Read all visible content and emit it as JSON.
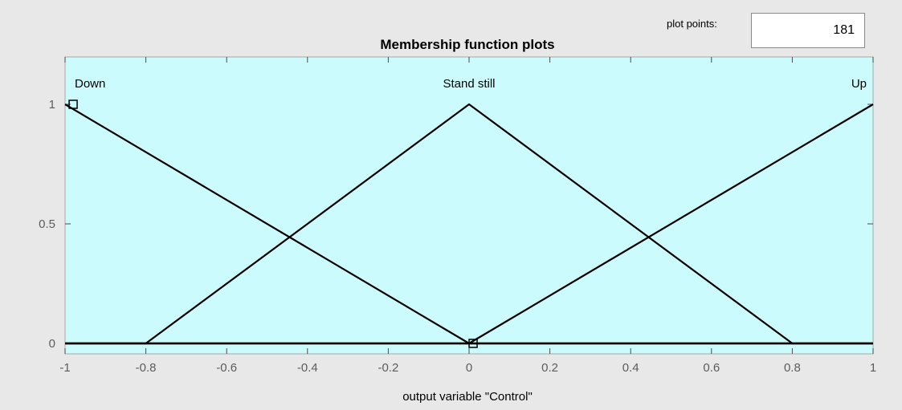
{
  "controls": {
    "plot_points_label": "plot points:",
    "plot_points_value": "181"
  },
  "colors": {
    "panel_background": "#e8e8e8",
    "plot_background": "#ccfbfd",
    "line_color": "#000000",
    "tick_label_color": "#5c5c5c"
  },
  "chart_data": {
    "type": "line",
    "title": "Membership function plots",
    "xlabel": "output variable \"Control\"",
    "ylabel": "",
    "xlim": [
      -1,
      1
    ],
    "ylim": [
      -0.05,
      1.2
    ],
    "x_ticks": [
      -1,
      -0.8,
      -0.6,
      -0.4,
      -0.2,
      0,
      0.2,
      0.4,
      0.6,
      0.8,
      1
    ],
    "x_tick_labels": [
      "-1",
      "-0.8",
      "-0.6",
      "-0.4",
      "-0.2",
      "0",
      "0.2",
      "0.4",
      "0.6",
      "0.8",
      "1"
    ],
    "y_ticks": [
      0,
      0.5,
      1
    ],
    "y_tick_labels": [
      "0",
      "0.5",
      "1"
    ],
    "grid": false,
    "series": [
      {
        "name": "Down",
        "x": [
          -1,
          0,
          1
        ],
        "y": [
          1,
          0,
          0
        ]
      },
      {
        "name": "Stand still",
        "x": [
          -1,
          -0.8,
          0,
          0.8,
          1
        ],
        "y": [
          0,
          0,
          1,
          0,
          0
        ]
      },
      {
        "name": "Up",
        "x": [
          -1,
          0,
          1
        ],
        "y": [
          0,
          0,
          1
        ]
      }
    ],
    "markers": [
      {
        "x": -0.98,
        "y": 1
      },
      {
        "x": 0.01,
        "y": 0
      }
    ]
  }
}
